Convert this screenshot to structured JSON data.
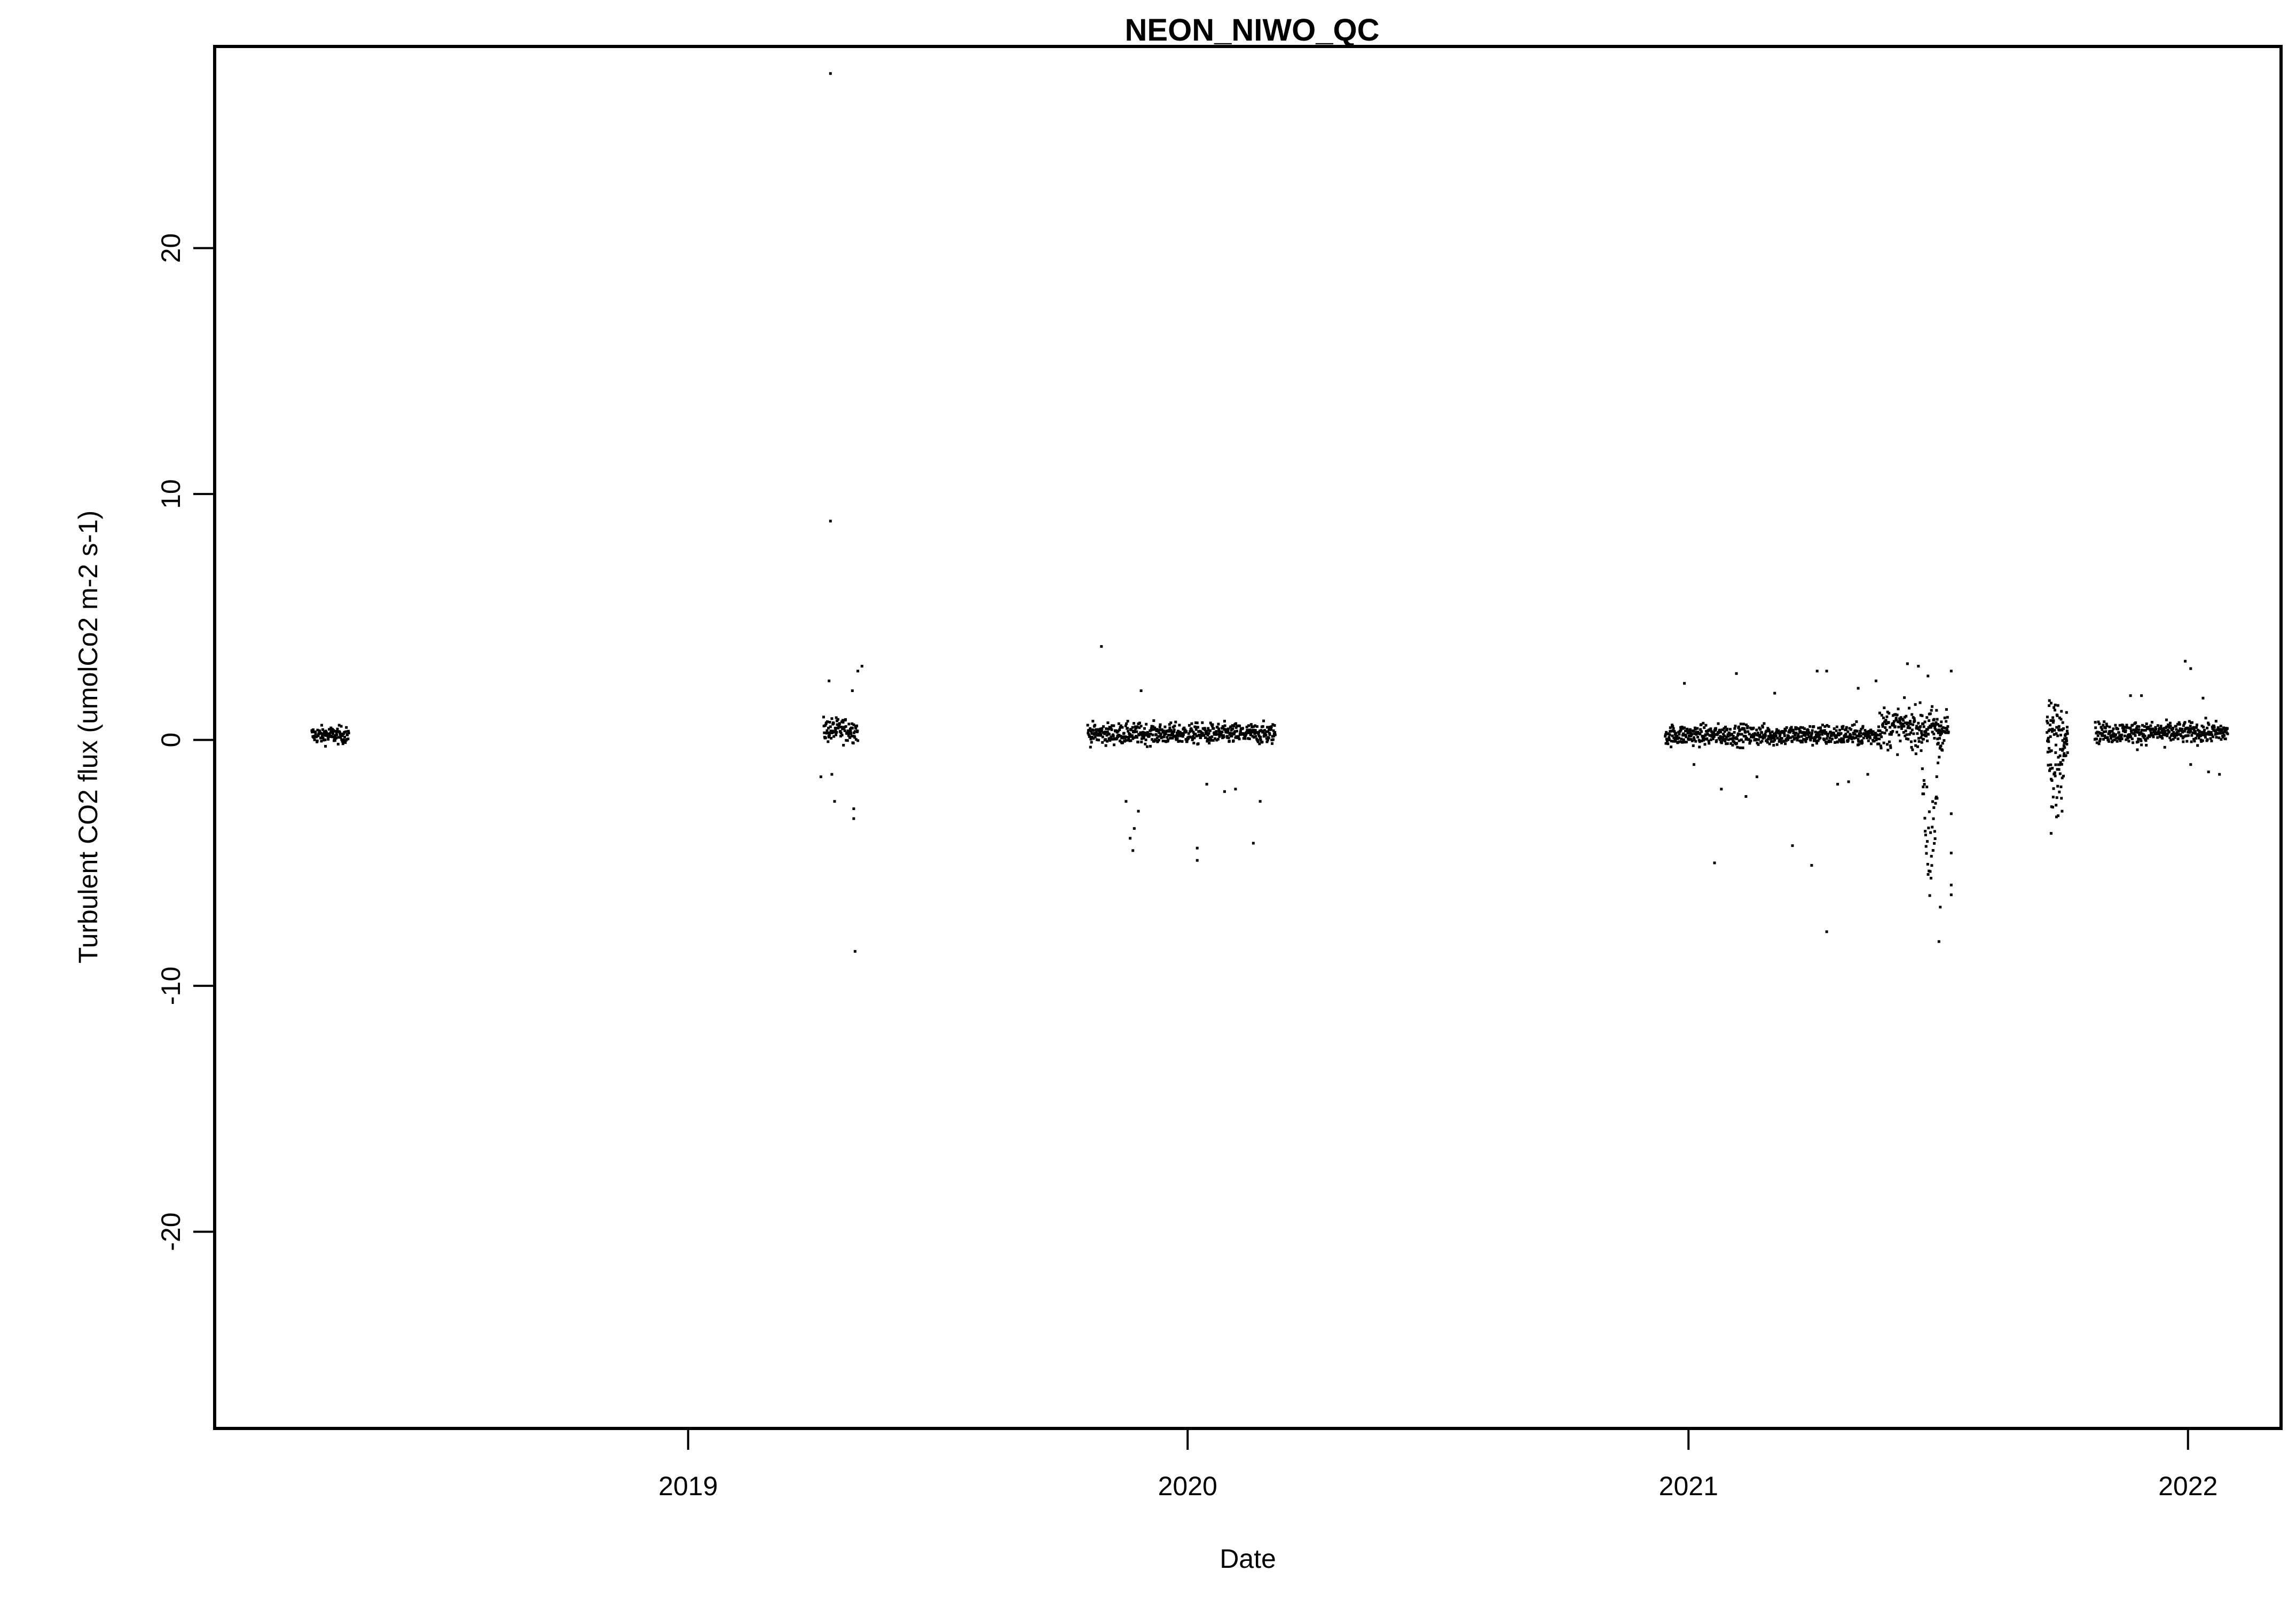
{
  "chart_data": {
    "type": "scatter",
    "title": "NEON_NIWO_QC",
    "xlabel": "Date",
    "ylabel": "Turbulent CO2 flux (umolCo2 m-2 s-1)",
    "x_axis": {
      "scale": "date",
      "range": [
        "2018-01-20",
        "2022-03-10"
      ],
      "ticks": [
        {
          "value": "2019-01-01",
          "label": "2019"
        },
        {
          "value": "2020-01-01",
          "label": "2020"
        },
        {
          "value": "2021-01-01",
          "label": "2021"
        },
        {
          "value": "2022-01-01",
          "label": "2022"
        }
      ]
    },
    "y_axis": {
      "range": [
        -28,
        28.2
      ],
      "ticks": [
        {
          "value": -20,
          "label": "-20"
        },
        {
          "value": -10,
          "label": "-10"
        },
        {
          "value": 0,
          "label": "0"
        },
        {
          "value": 10,
          "label": "10"
        },
        {
          "value": 20,
          "label": "20"
        }
      ]
    },
    "grid": false,
    "legend": "none",
    "point_color": "#000000",
    "clusters": [
      {
        "start": "2018-04-01",
        "end": "2018-04-28",
        "center": 0.2,
        "spread": 0.25
      },
      {
        "start": "2019-04-10",
        "end": "2019-05-05",
        "center": 0.4,
        "spread": 0.35
      },
      {
        "start": "2019-10-20",
        "end": "2020-03-05",
        "center": 0.25,
        "spread": 0.3
      },
      {
        "start": "2020-12-15",
        "end": "2021-05-20",
        "center": 0.2,
        "spread": 0.3
      },
      {
        "start": "2021-05-20",
        "end": "2021-07-10",
        "center": 0.5,
        "spread": 0.6
      },
      {
        "start": "2021-09-20",
        "end": "2021-10-05",
        "center": 0.5,
        "spread": 0.8
      },
      {
        "start": "2021-10-25",
        "end": "2022-01-30",
        "center": 0.3,
        "spread": 0.3
      }
    ],
    "dips": [
      {
        "start": "2021-06-20",
        "end": "2021-07-05",
        "min": -6.5
      },
      {
        "start": "2021-09-20",
        "end": "2021-10-05",
        "min": -3.5
      }
    ],
    "points": [
      {
        "x": "2019-04-15",
        "y": 27.1
      },
      {
        "x": "2019-04-15",
        "y": 8.9
      },
      {
        "x": "2019-05-03",
        "y": -8.6
      },
      {
        "x": "2019-05-02",
        "y": -3.2
      },
      {
        "x": "2019-05-02",
        "y": -2.8
      },
      {
        "x": "2019-04-18",
        "y": -2.5
      },
      {
        "x": "2019-04-08",
        "y": -1.5
      },
      {
        "x": "2019-04-16",
        "y": -1.4
      },
      {
        "x": "2019-05-08",
        "y": 3.0
      },
      {
        "x": "2019-05-05",
        "y": 2.8
      },
      {
        "x": "2019-04-14",
        "y": 2.4
      },
      {
        "x": "2019-05-01",
        "y": 2.0
      },
      {
        "x": "2019-10-30",
        "y": 3.8
      },
      {
        "x": "2019-11-28",
        "y": 2.0
      },
      {
        "x": "2019-11-22",
        "y": -4.5
      },
      {
        "x": "2019-11-20",
        "y": -4.0
      },
      {
        "x": "2019-11-23",
        "y": -3.6
      },
      {
        "x": "2019-11-26",
        "y": -2.9
      },
      {
        "x": "2019-11-17",
        "y": -2.5
      },
      {
        "x": "2020-01-08",
        "y": -4.9
      },
      {
        "x": "2020-01-08",
        "y": -4.4
      },
      {
        "x": "2020-01-28",
        "y": -2.1
      },
      {
        "x": "2020-02-05",
        "y": -2.0
      },
      {
        "x": "2020-02-18",
        "y": -4.2
      },
      {
        "x": "2020-02-23",
        "y": -2.5
      },
      {
        "x": "2020-01-15",
        "y": -1.8
      },
      {
        "x": "2020-12-29",
        "y": 2.3
      },
      {
        "x": "2021-01-05",
        "y": -1.0
      },
      {
        "x": "2021-01-20",
        "y": -5.0
      },
      {
        "x": "2021-01-25",
        "y": -2.0
      },
      {
        "x": "2021-02-05",
        "y": 2.7
      },
      {
        "x": "2021-02-12",
        "y": -2.3
      },
      {
        "x": "2021-02-20",
        "y": -1.5
      },
      {
        "x": "2021-03-05",
        "y": 1.9
      },
      {
        "x": "2021-03-18",
        "y": -4.3
      },
      {
        "x": "2021-04-01",
        "y": -5.1
      },
      {
        "x": "2021-04-05",
        "y": 2.8
      },
      {
        "x": "2021-04-12",
        "y": 2.8
      },
      {
        "x": "2021-04-12",
        "y": -7.8
      },
      {
        "x": "2021-04-20",
        "y": -1.8
      },
      {
        "x": "2021-04-28",
        "y": -1.7
      },
      {
        "x": "2021-05-05",
        "y": 2.1
      },
      {
        "x": "2021-05-12",
        "y": -1.4
      },
      {
        "x": "2021-05-18",
        "y": 2.4
      },
      {
        "x": "2021-06-10",
        "y": 3.1
      },
      {
        "x": "2021-06-18",
        "y": 3.0
      },
      {
        "x": "2021-06-25",
        "y": 2.6
      },
      {
        "x": "2021-07-03",
        "y": -8.2
      },
      {
        "x": "2021-07-04",
        "y": -6.8
      },
      {
        "x": "2021-07-12",
        "y": 2.8
      },
      {
        "x": "2021-07-12",
        "y": -6.3
      },
      {
        "x": "2021-07-12",
        "y": -5.9
      },
      {
        "x": "2021-07-12",
        "y": -4.6
      },
      {
        "x": "2021-07-12",
        "y": -3.0
      },
      {
        "x": "2021-09-23",
        "y": -3.8
      },
      {
        "x": "2021-10-01",
        "y": -2.9
      },
      {
        "x": "2021-11-20",
        "y": 1.8
      },
      {
        "x": "2021-11-28",
        "y": 1.8
      },
      {
        "x": "2021-11-25",
        "y": -0.4
      },
      {
        "x": "2021-12-15",
        "y": -0.3
      },
      {
        "x": "2021-12-30",
        "y": 3.2
      },
      {
        "x": "2022-01-03",
        "y": 2.9
      },
      {
        "x": "2022-01-03",
        "y": -1.0
      },
      {
        "x": "2022-01-12",
        "y": 1.7
      },
      {
        "x": "2022-01-16",
        "y": -1.3
      },
      {
        "x": "2022-01-24",
        "y": -1.4
      }
    ]
  }
}
